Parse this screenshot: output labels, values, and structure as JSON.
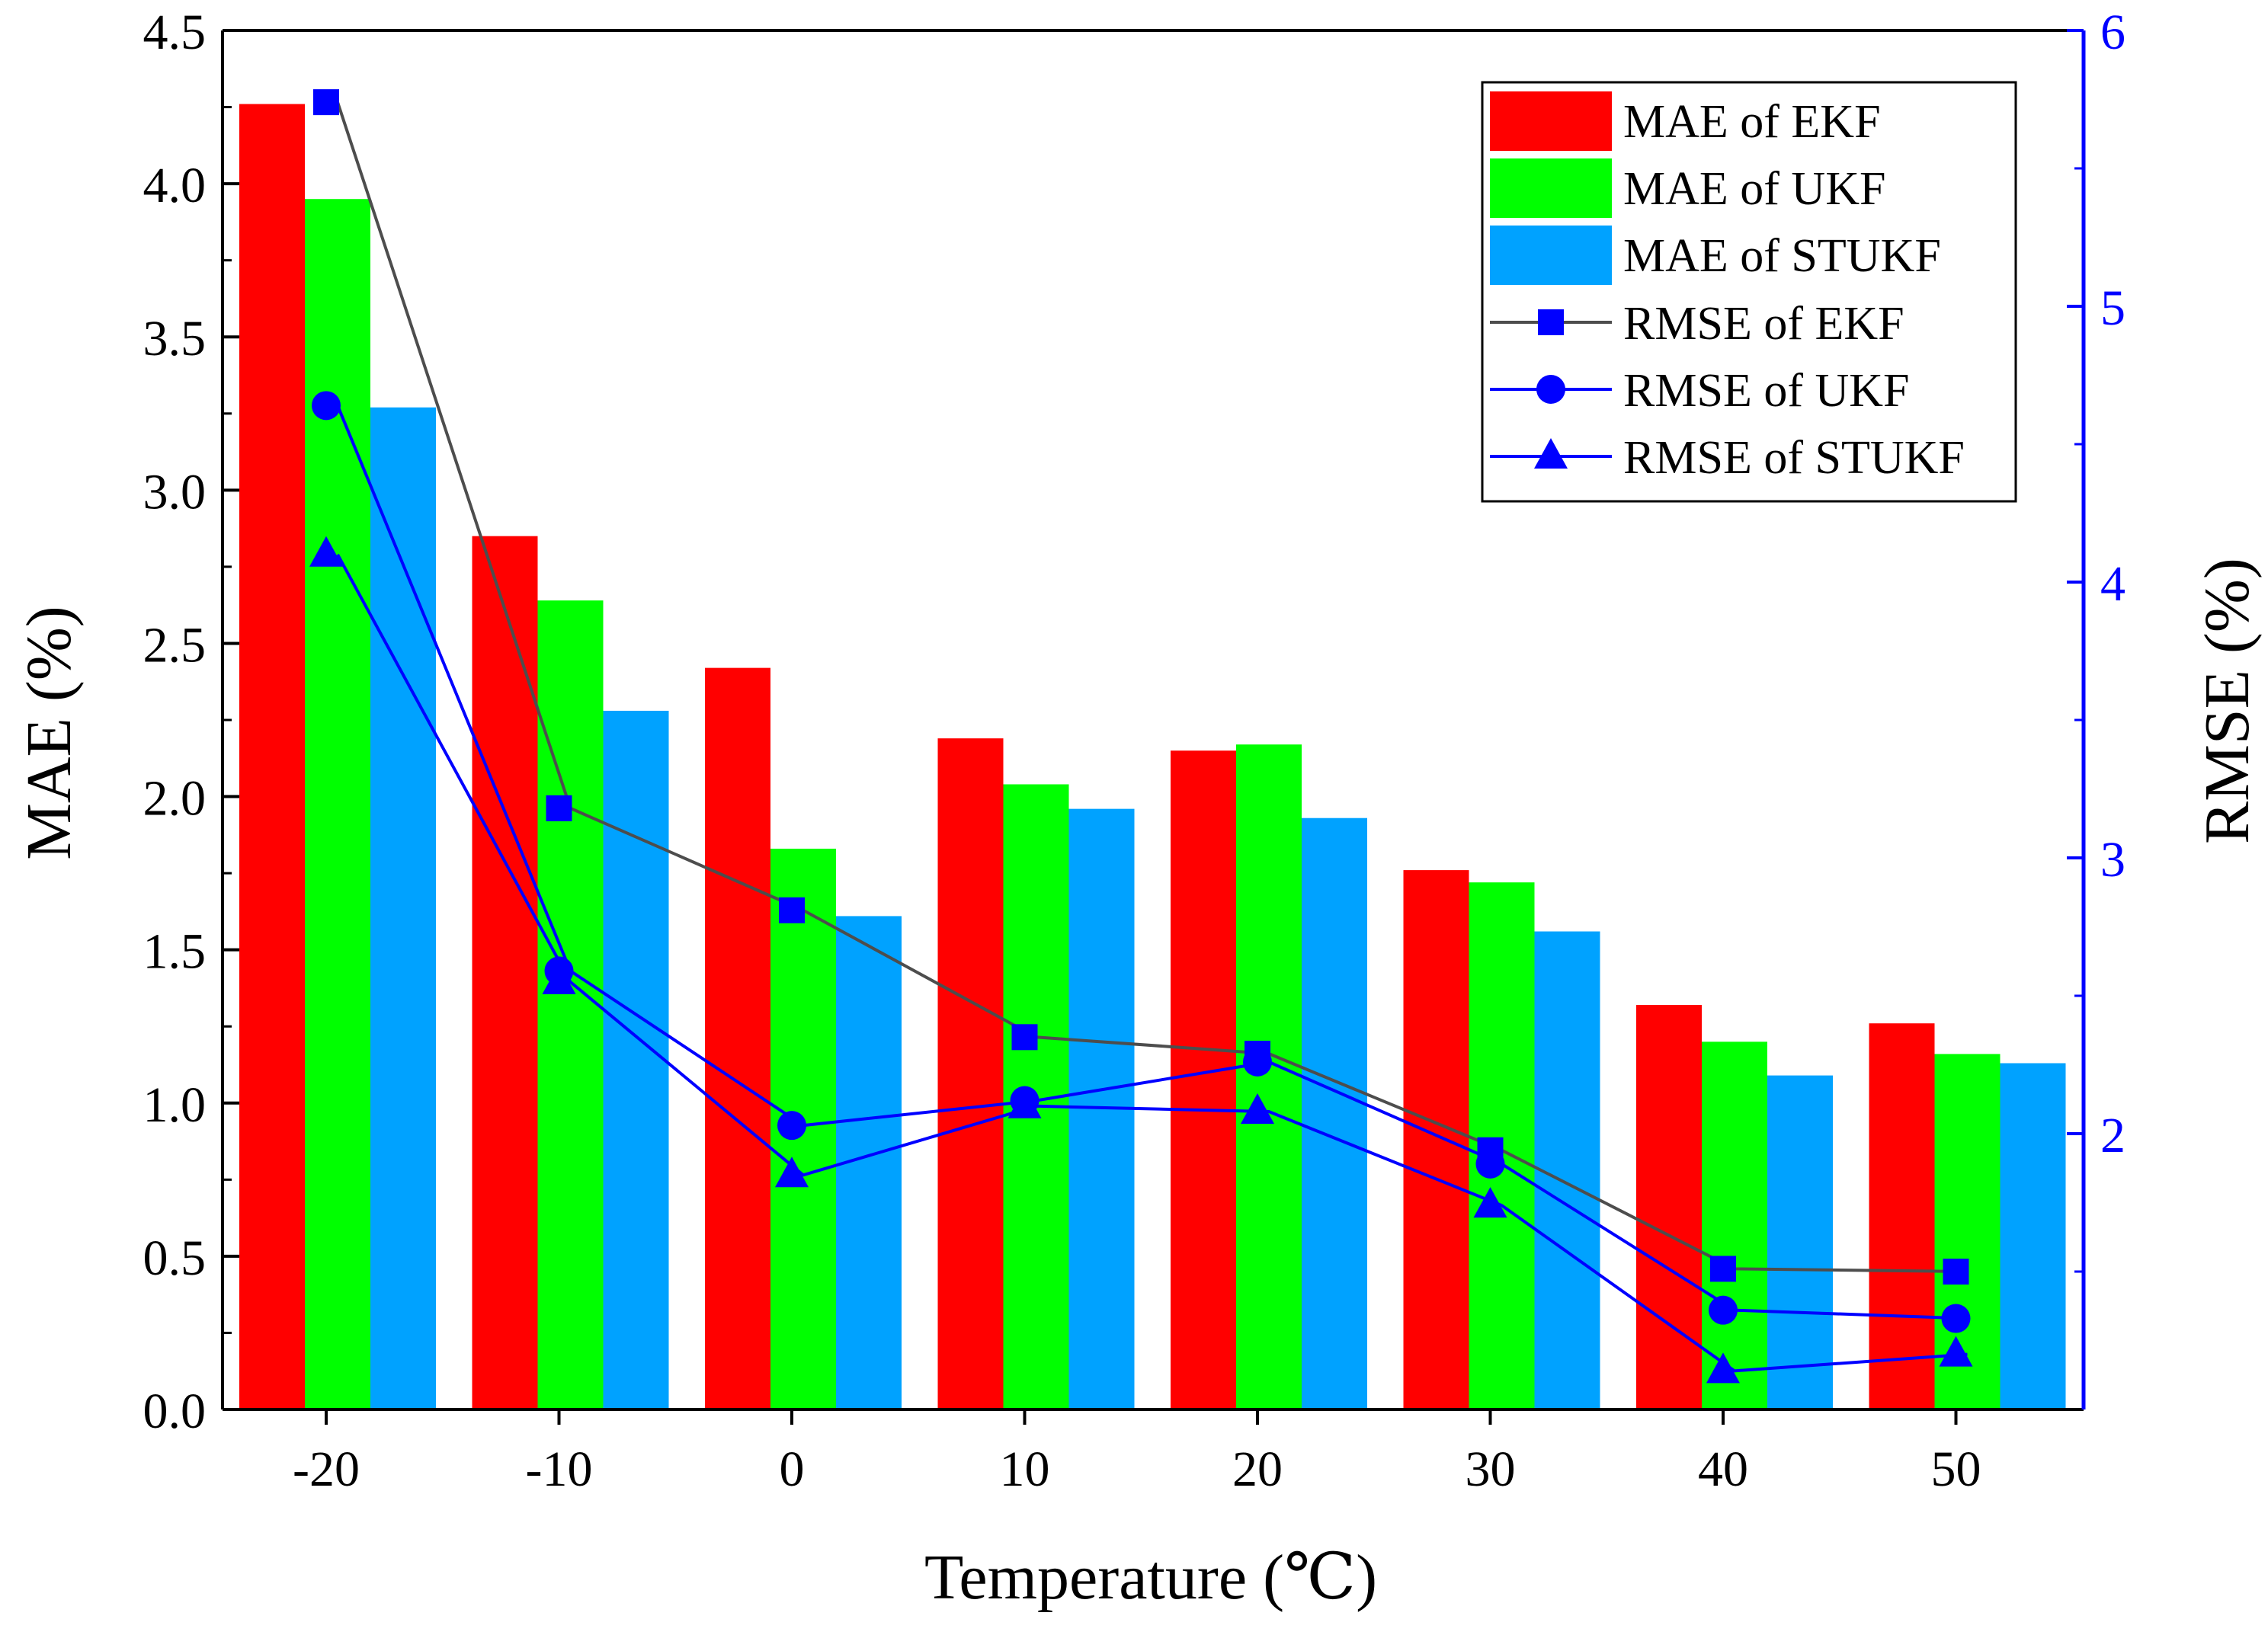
{
  "chart_data": {
    "type": "bar",
    "title": "",
    "xlabel": "Temperature (℃)",
    "ylabel": "MAE (%)",
    "y2label": "RMSE (%)",
    "categories": [
      "-20",
      "-10",
      "0",
      "10",
      "20",
      "30",
      "40",
      "50"
    ],
    "ylim": [
      0,
      4.5
    ],
    "y_ticks": [
      "0.0",
      "0.5",
      "1.0",
      "1.5",
      "2.0",
      "2.5",
      "3.0",
      "3.5",
      "4.0",
      "4.5"
    ],
    "y2lim": [
      1.0,
      6.0
    ],
    "y2_ticks": [
      "2",
      "3",
      "4",
      "5",
      "6"
    ],
    "grid": false,
    "legend_position": "top-right",
    "bar_series": [
      {
        "name": "MAE of EKF",
        "color": "#ff0000",
        "values": [
          4.26,
          2.85,
          2.42,
          2.19,
          2.15,
          1.76,
          1.32,
          1.26
        ]
      },
      {
        "name": "MAE of UKF",
        "color": "#00ff00",
        "values": [
          3.95,
          2.64,
          1.83,
          2.04,
          2.17,
          1.72,
          1.2,
          1.16
        ]
      },
      {
        "name": "MAE of STUKF",
        "color": "#00a2ff",
        "values": [
          3.27,
          2.28,
          1.61,
          1.96,
          1.93,
          1.56,
          1.09,
          1.13
        ]
      }
    ],
    "line_series": [
      {
        "name": "RMSE of EKF",
        "marker": "square",
        "line_color": "#4d4d4d",
        "marker_color": "#0000ff",
        "values": [
          5.74,
          3.18,
          2.81,
          2.35,
          2.29,
          1.94,
          1.51,
          1.5
        ]
      },
      {
        "name": "RMSE of UKF",
        "marker": "circle",
        "line_color": "#0000ff",
        "marker_color": "#0000ff",
        "values": [
          4.64,
          2.59,
          2.03,
          2.12,
          2.26,
          1.89,
          1.36,
          1.33
        ]
      },
      {
        "name": "RMSE of STUKF",
        "marker": "triangle",
        "line_color": "#0000ff",
        "marker_color": "#0000ff",
        "values": [
          4.1,
          2.55,
          1.85,
          2.1,
          2.08,
          1.74,
          1.14,
          1.2
        ]
      }
    ],
    "axis_colors": {
      "left": "#000000",
      "right": "#0000ff"
    }
  }
}
